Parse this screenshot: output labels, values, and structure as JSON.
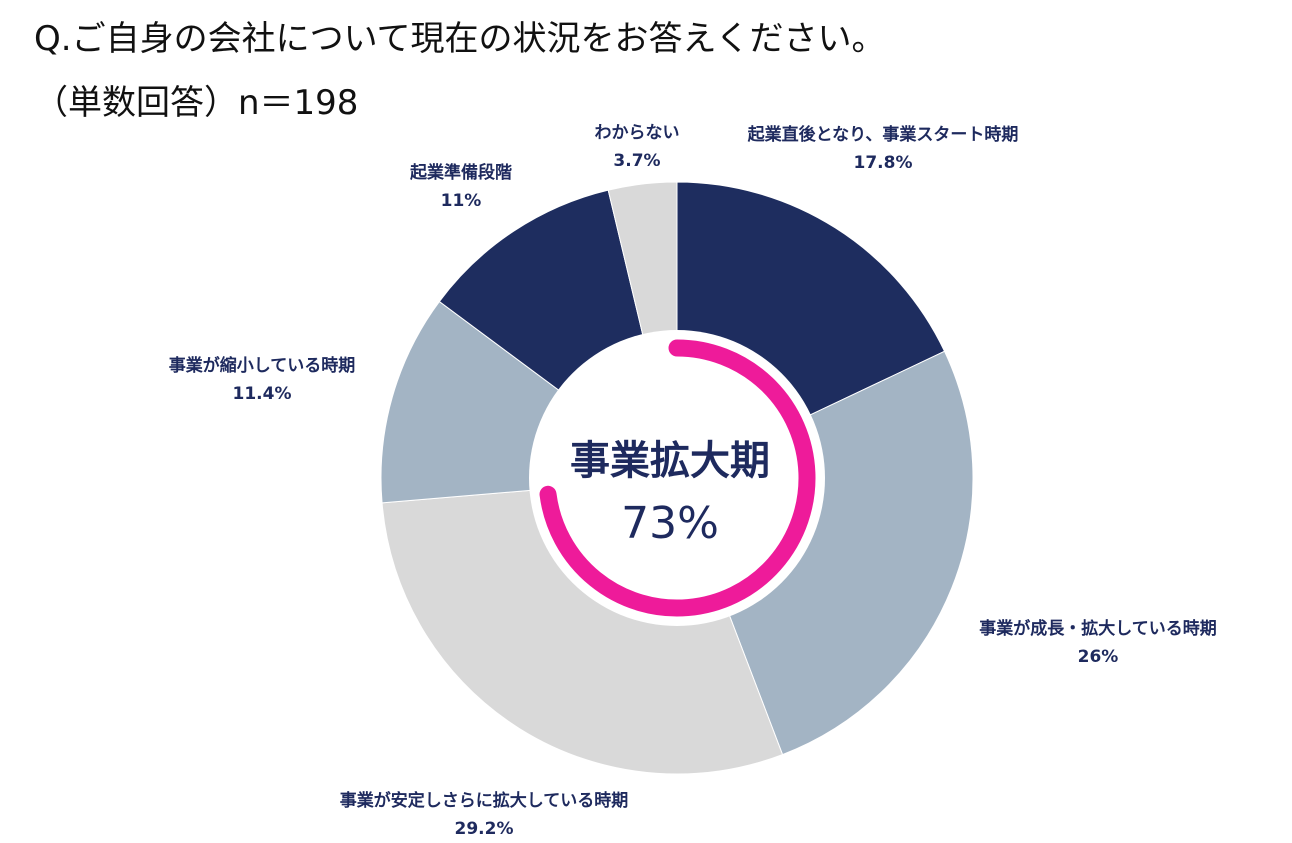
{
  "question": "Q.ご自身の会社について現在の状況をお答えください。",
  "subtitle": "（単数回答）n＝198",
  "chart_data": {
    "type": "pie",
    "style": "donut",
    "title": "Q.ご自身の会社について現在の状況をお答えください。",
    "subtitle": "（単数回答）n＝198",
    "unit": "%",
    "slices": [
      {
        "label": "起業直後となり、事業スタート時期",
        "value": 17.8,
        "value_label": "17.8%",
        "color": "#1e2d5f"
      },
      {
        "label": "事業が成長・拡大している時期",
        "value": 26,
        "value_label": "26%",
        "color": "#a3b4c4"
      },
      {
        "label": "事業が安定しさらに拡大している時期",
        "value": 29.2,
        "value_label": "29.2%",
        "color": "#d9d9d9"
      },
      {
        "label": "事業が縮小している時期",
        "value": 11.4,
        "value_label": "11.4%",
        "color": "#a3b4c4"
      },
      {
        "label": "起業準備段階",
        "value": 11,
        "value_label": "11%",
        "color": "#1e2d5f"
      },
      {
        "label": "わからない",
        "value": 3.7,
        "value_label": "3.7%",
        "color": "#d9d9d9"
      }
    ],
    "center": {
      "title": "事業拡大期",
      "value": "73%",
      "highlight_value": 73,
      "highlight_color": "#ee1b9a"
    }
  }
}
